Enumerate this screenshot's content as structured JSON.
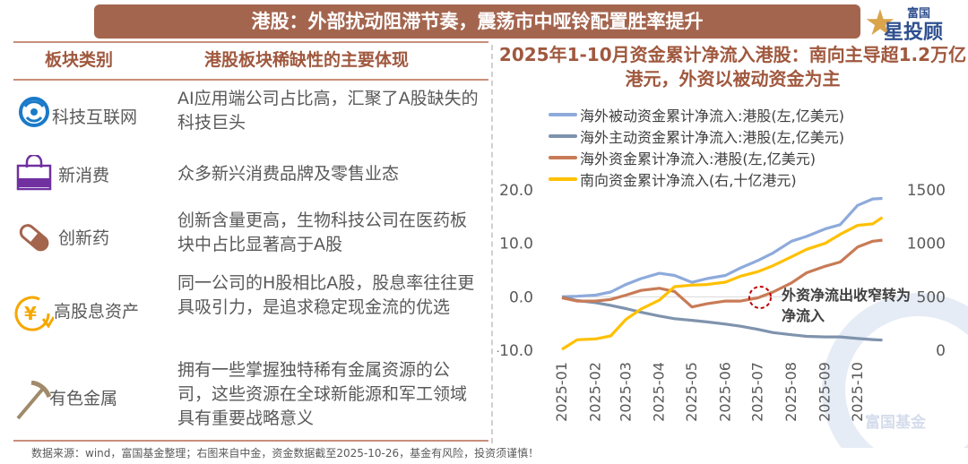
{
  "header": {
    "title": "港股：外部扰动阻滞节奏，震荡市中哑铃配置胜率提升",
    "logo_text": "富国星投顾"
  },
  "table": {
    "headers": [
      "板块类别",
      "港股板块稀缺性的主要体现"
    ],
    "rows": [
      {
        "icon": "globe-network-icon",
        "category": "科技互联网",
        "desc": "AI应用端公司占比高，汇聚了A股缺失的科技巨头",
        "color": "#1a7ac9"
      },
      {
        "icon": "shopping-bag-icon",
        "category": "新消费",
        "desc": "众多新兴消费品牌及零售业态",
        "color": "#7030a0"
      },
      {
        "icon": "pill-icon",
        "category": "创新药",
        "desc": "创新含量更高，生物科技公司在医药板块中占比显著高于A股",
        "color": "#a4654e"
      },
      {
        "icon": "yen-cycle-icon",
        "category": "高股息资产",
        "desc": "同一公司的H股相比A股，股息率往往更具吸引力，是追求稳定现金流的优选",
        "color": "#f5a800"
      },
      {
        "icon": "pickaxe-icon",
        "category": "有色金属",
        "desc": "拥有一些掌握独特稀有金属资源的公司，这些资源在全球新能源和军工领域具有重要战略意义",
        "color": "#a08a6a"
      }
    ]
  },
  "footer": "数据来源：wind，富国基金整理；右图来自中金，资金数据截至2025-10-26，基金有风险，投资须谨慎！",
  "watermark": "富国基金",
  "chart_data": {
    "type": "line",
    "title": "2025年1-10月资金累计净流入港股：南向主导超1.2万亿港元，外资以被动资金为主",
    "x": [
      "2025-01-01",
      "2025-01-15",
      "2025-02-01",
      "2025-02-15",
      "2025-03-01",
      "2025-03-15",
      "2025-04-01",
      "2025-04-15",
      "2025-05-01",
      "2025-05-15",
      "2025-06-01",
      "2025-06-15",
      "2025-07-01",
      "2025-07-15",
      "2025-08-01",
      "2025-08-15",
      "2025-09-01",
      "2025-09-15",
      "2025-10-01",
      "2025-10-15",
      "2025-10-24"
    ],
    "x_tick_labels": [
      "2025-01",
      "2025-02",
      "2025-03",
      "2025-04",
      "2025-05",
      "2025-06",
      "2025-07",
      "2025-08",
      "2025-09",
      "2025-10"
    ],
    "y_left": {
      "range": [
        -10,
        20
      ],
      "ticks": [
        "-10.0",
        "0.0",
        "10.0",
        "20.0"
      ]
    },
    "y_right": {
      "range": [
        0,
        1500
      ],
      "ticks": [
        "0",
        "500",
        "1000",
        "1500"
      ]
    },
    "legend_position": "top",
    "series": [
      {
        "name": "海外被动资金累计净流入:港股(左,亿美元)",
        "axis": "left",
        "color": "#8eaadb",
        "values": [
          0,
          0.1,
          0.3,
          0.9,
          2.3,
          3.4,
          4.4,
          4.0,
          2.7,
          3.4,
          4.0,
          5.4,
          6.8,
          8.2,
          10.4,
          11.3,
          12.7,
          13.5,
          17.1,
          18.3,
          18.4
        ]
      },
      {
        "name": "海外主动资金累计净流入:港股(左,亿美元)",
        "axis": "left",
        "color": "#7f93ad",
        "values": [
          0,
          -0.7,
          -1.1,
          -1.6,
          -2.2,
          -2.9,
          -3.6,
          -4.1,
          -4.4,
          -4.7,
          -5.1,
          -5.5,
          -6.1,
          -6.7,
          -7.1,
          -7.4,
          -7.5,
          -7.5,
          -7.8,
          -8.0,
          -8.1
        ]
      },
      {
        "name": "海外资金累计净流入:港股(左,亿美元)",
        "axis": "left",
        "color": "#c87b56",
        "values": [
          -0.2,
          -0.8,
          -0.8,
          -0.5,
          0.3,
          1.2,
          1.6,
          1.0,
          -1.9,
          -1.3,
          -0.8,
          -0.8,
          -0.2,
          0.9,
          2.6,
          4.5,
          5.7,
          6.5,
          9.3,
          10.4,
          10.6
        ]
      },
      {
        "name": "南向资金累计净流入(右,十亿港元)",
        "axis": "right",
        "color": "#ffc000",
        "values": [
          8,
          98,
          106,
          134,
          288,
          385,
          469,
          595,
          609,
          615,
          637,
          693,
          735,
          791,
          874,
          944,
          1000,
          1084,
          1168,
          1182,
          1243
        ]
      }
    ],
    "annotation": "外资净流出收窄转为净流入"
  }
}
